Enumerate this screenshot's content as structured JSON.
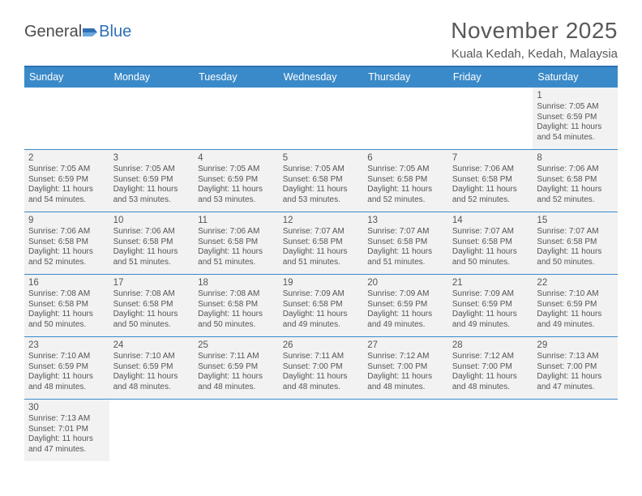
{
  "logo": {
    "text1": "General",
    "text2": "Blue"
  },
  "title": "November 2025",
  "location": "Kuala Kedah, Kedah, Malaysia",
  "theme": {
    "header_bg": "#3a8ac9",
    "header_border": "#2d6fb5",
    "row_divider": "#3a8ac9",
    "cell_bg": "#f2f2f2",
    "text_color": "#555555",
    "title_color": "#595959"
  },
  "day_names": [
    "Sunday",
    "Monday",
    "Tuesday",
    "Wednesday",
    "Thursday",
    "Friday",
    "Saturday"
  ],
  "weeks": [
    [
      null,
      null,
      null,
      null,
      null,
      null,
      {
        "n": "1",
        "sr": "7:05 AM",
        "ss": "6:59 PM",
        "dl": "11 hours and 54 minutes."
      }
    ],
    [
      {
        "n": "2",
        "sr": "7:05 AM",
        "ss": "6:59 PM",
        "dl": "11 hours and 54 minutes."
      },
      {
        "n": "3",
        "sr": "7:05 AM",
        "ss": "6:59 PM",
        "dl": "11 hours and 53 minutes."
      },
      {
        "n": "4",
        "sr": "7:05 AM",
        "ss": "6:59 PM",
        "dl": "11 hours and 53 minutes."
      },
      {
        "n": "5",
        "sr": "7:05 AM",
        "ss": "6:58 PM",
        "dl": "11 hours and 53 minutes."
      },
      {
        "n": "6",
        "sr": "7:05 AM",
        "ss": "6:58 PM",
        "dl": "11 hours and 52 minutes."
      },
      {
        "n": "7",
        "sr": "7:06 AM",
        "ss": "6:58 PM",
        "dl": "11 hours and 52 minutes."
      },
      {
        "n": "8",
        "sr": "7:06 AM",
        "ss": "6:58 PM",
        "dl": "11 hours and 52 minutes."
      }
    ],
    [
      {
        "n": "9",
        "sr": "7:06 AM",
        "ss": "6:58 PM",
        "dl": "11 hours and 52 minutes."
      },
      {
        "n": "10",
        "sr": "7:06 AM",
        "ss": "6:58 PM",
        "dl": "11 hours and 51 minutes."
      },
      {
        "n": "11",
        "sr": "7:06 AM",
        "ss": "6:58 PM",
        "dl": "11 hours and 51 minutes."
      },
      {
        "n": "12",
        "sr": "7:07 AM",
        "ss": "6:58 PM",
        "dl": "11 hours and 51 minutes."
      },
      {
        "n": "13",
        "sr": "7:07 AM",
        "ss": "6:58 PM",
        "dl": "11 hours and 51 minutes."
      },
      {
        "n": "14",
        "sr": "7:07 AM",
        "ss": "6:58 PM",
        "dl": "11 hours and 50 minutes."
      },
      {
        "n": "15",
        "sr": "7:07 AM",
        "ss": "6:58 PM",
        "dl": "11 hours and 50 minutes."
      }
    ],
    [
      {
        "n": "16",
        "sr": "7:08 AM",
        "ss": "6:58 PM",
        "dl": "11 hours and 50 minutes."
      },
      {
        "n": "17",
        "sr": "7:08 AM",
        "ss": "6:58 PM",
        "dl": "11 hours and 50 minutes."
      },
      {
        "n": "18",
        "sr": "7:08 AM",
        "ss": "6:58 PM",
        "dl": "11 hours and 50 minutes."
      },
      {
        "n": "19",
        "sr": "7:09 AM",
        "ss": "6:58 PM",
        "dl": "11 hours and 49 minutes."
      },
      {
        "n": "20",
        "sr": "7:09 AM",
        "ss": "6:59 PM",
        "dl": "11 hours and 49 minutes."
      },
      {
        "n": "21",
        "sr": "7:09 AM",
        "ss": "6:59 PM",
        "dl": "11 hours and 49 minutes."
      },
      {
        "n": "22",
        "sr": "7:10 AM",
        "ss": "6:59 PM",
        "dl": "11 hours and 49 minutes."
      }
    ],
    [
      {
        "n": "23",
        "sr": "7:10 AM",
        "ss": "6:59 PM",
        "dl": "11 hours and 48 minutes."
      },
      {
        "n": "24",
        "sr": "7:10 AM",
        "ss": "6:59 PM",
        "dl": "11 hours and 48 minutes."
      },
      {
        "n": "25",
        "sr": "7:11 AM",
        "ss": "6:59 PM",
        "dl": "11 hours and 48 minutes."
      },
      {
        "n": "26",
        "sr": "7:11 AM",
        "ss": "7:00 PM",
        "dl": "11 hours and 48 minutes."
      },
      {
        "n": "27",
        "sr": "7:12 AM",
        "ss": "7:00 PM",
        "dl": "11 hours and 48 minutes."
      },
      {
        "n": "28",
        "sr": "7:12 AM",
        "ss": "7:00 PM",
        "dl": "11 hours and 48 minutes."
      },
      {
        "n": "29",
        "sr": "7:13 AM",
        "ss": "7:00 PM",
        "dl": "11 hours and 47 minutes."
      }
    ],
    [
      {
        "n": "30",
        "sr": "7:13 AM",
        "ss": "7:01 PM",
        "dl": "11 hours and 47 minutes."
      },
      null,
      null,
      null,
      null,
      null,
      null
    ]
  ],
  "labels": {
    "sunrise": "Sunrise: ",
    "sunset": "Sunset: ",
    "daylight": "Daylight: "
  }
}
